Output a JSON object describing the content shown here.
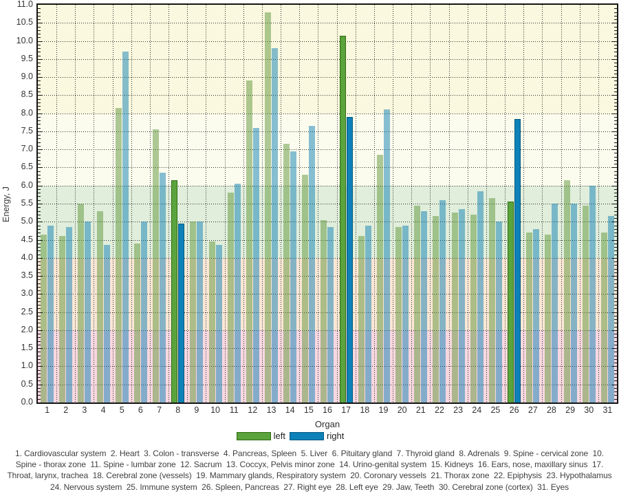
{
  "chart_data": {
    "type": "bar",
    "title": "",
    "xlabel": "Organ",
    "ylabel": "Energy, J",
    "ylim": [
      0,
      11
    ],
    "ytick_step": 0.5,
    "grid": "dotted",
    "legend_position": "bottom",
    "categories": [
      1,
      2,
      3,
      4,
      5,
      6,
      7,
      8,
      9,
      10,
      11,
      12,
      13,
      14,
      15,
      16,
      17,
      18,
      19,
      20,
      21,
      22,
      23,
      24,
      25,
      26,
      27,
      28,
      29,
      30,
      31
    ],
    "series": [
      {
        "name": "left",
        "fill": "#5ba33c",
        "border": "#2c6b12",
        "faded": "rgba(94,148,58,0.5)",
        "values": [
          4.65,
          4.6,
          5.5,
          5.3,
          8.15,
          4.4,
          7.55,
          6.15,
          5.0,
          4.45,
          5.8,
          8.9,
          10.8,
          7.15,
          6.3,
          5.05,
          10.15,
          4.6,
          6.85,
          4.85,
          5.45,
          5.15,
          5.25,
          5.2,
          5.65,
          5.55,
          4.7,
          4.65,
          6.15,
          5.45,
          4.7
        ]
      },
      {
        "name": "right",
        "fill": "#0e81b8",
        "border": "#01597f",
        "faded": "rgba(16,128,180,0.5)",
        "values": [
          4.9,
          4.85,
          5.0,
          4.35,
          9.7,
          5.0,
          6.35,
          4.95,
          5.0,
          4.35,
          6.05,
          7.6,
          9.8,
          6.95,
          7.65,
          4.85,
          7.9,
          4.9,
          8.1,
          4.9,
          5.3,
          5.6,
          5.35,
          5.85,
          5.0,
          7.85,
          4.8,
          5.5,
          5.5,
          6.0,
          5.15
        ]
      }
    ],
    "highlighted_categories": [
      8,
      17,
      26
    ],
    "bands": [
      {
        "from": 8,
        "to": 11,
        "color": "#faf8de"
      },
      {
        "from": 6,
        "to": 8,
        "color": "#fcfcee"
      },
      {
        "from": 4,
        "to": 6,
        "color": "#e0eedb"
      },
      {
        "from": 2,
        "to": 4,
        "color": "#fae7d5"
      },
      {
        "from": 0,
        "to": 2,
        "color": "#f8d8e0"
      }
    ]
  },
  "axes": {
    "y_title": "Energy, J",
    "x_title": "Organ",
    "y_tick_labels": [
      "0.0",
      "0.5",
      "1.0",
      "1.5",
      "2.0",
      "2.5",
      "3.0",
      "3.5",
      "4.0",
      "4.5",
      "5.0",
      "5.5",
      "6.0",
      "6.5",
      "7.0",
      "7.5",
      "8.0",
      "8.5",
      "9.0",
      "9.5",
      "10.0",
      "10.5",
      "11.0"
    ]
  },
  "legend": {
    "items": [
      {
        "label": "left",
        "fill": "#5ba33c",
        "border": "#2c6b12"
      },
      {
        "label": "right",
        "fill": "#0e81b8",
        "border": "#01597f"
      }
    ]
  },
  "caption": "1. Cardiovascular system  2. Heart  3. Colon - transverse  4. Pancreas, Spleen  5. Liver  6. Pituitary gland  7. Thyroid gland  8. Adrenals  9. Spine - cervical zone  10. Spine - thorax zone  11. Spine - lumbar zone  12. Sacrum  13. Coccyx, Pelvis minor zone  14. Urino-genital system  15. Kidneys  16. Ears, nose, maxillary sinus  17. Throat, larynx, trachea  18. Cerebral zone (vessels)  19. Mammary glands, Respiratory system  20. Coronary vessels  21. Thorax zone  22. Epiphysis  23. Hypothalamus  24. Nervous system  25. Immune system  26. Spleen, Pancreas  27. Right eye  28. Left eye  29. Jaw, Teeth  30. Cerebral zone (cortex)  31. Eyes"
}
